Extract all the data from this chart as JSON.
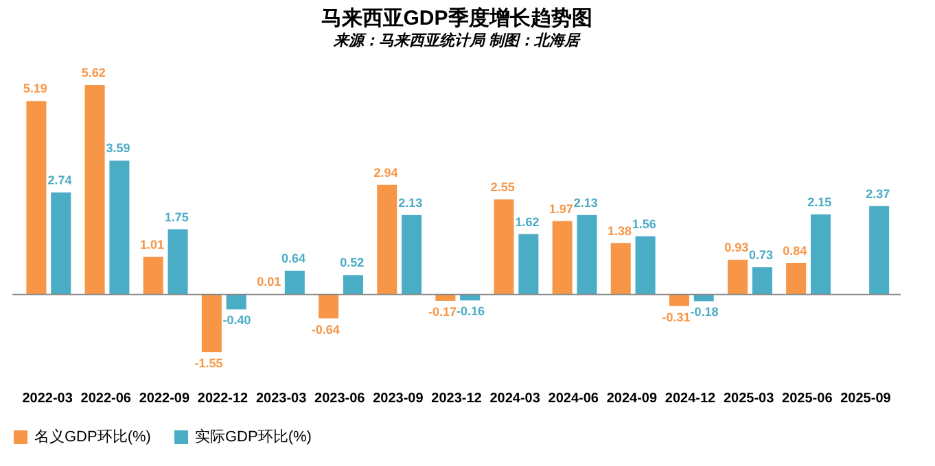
{
  "chart_data": {
    "type": "bar",
    "title": "马来西亚GDP季度增长趋势图",
    "subtitle": "来源：马来西亚统计局 制图：北海居",
    "categories": [
      "2022-03",
      "2022-06",
      "2022-09",
      "2022-12",
      "2023-03",
      "2023-06",
      "2023-09",
      "2023-12",
      "2024-03",
      "2024-06",
      "2024-09",
      "2024-12",
      "2025-03",
      "2025-06",
      "2025-09"
    ],
    "series": [
      {
        "name": "名义GDP环比(%)",
        "color": "#f79646",
        "values": [
          5.19,
          5.62,
          1.01,
          -1.55,
          0.01,
          -0.64,
          2.94,
          -0.17,
          2.55,
          1.97,
          1.38,
          -0.31,
          0.93,
          0.84,
          null
        ],
        "value_labels": [
          "5.19",
          "5.62",
          "1.01",
          "-1.55",
          "0.01",
          "-0.64",
          "2.94",
          "-0.17",
          "2.55",
          "1.97",
          "1.38",
          "-0.31",
          "0.93",
          "0.84",
          null
        ]
      },
      {
        "name": "实际GDP环比(%)",
        "color": "#4bacc6",
        "values": [
          2.74,
          3.59,
          1.75,
          -0.4,
          0.64,
          0.52,
          2.13,
          -0.16,
          1.62,
          2.13,
          1.56,
          -0.18,
          0.73,
          2.15,
          2.37
        ],
        "value_labels": [
          "2.74",
          "3.59",
          "1.75",
          "-0.40",
          "0.64",
          "0.52",
          "2.13",
          "-0.16",
          "1.62",
          "2.13",
          "1.56",
          "-0.18",
          "0.73",
          "2.15",
          "2.37"
        ]
      }
    ],
    "legend": "bottom",
    "grid": false
  }
}
